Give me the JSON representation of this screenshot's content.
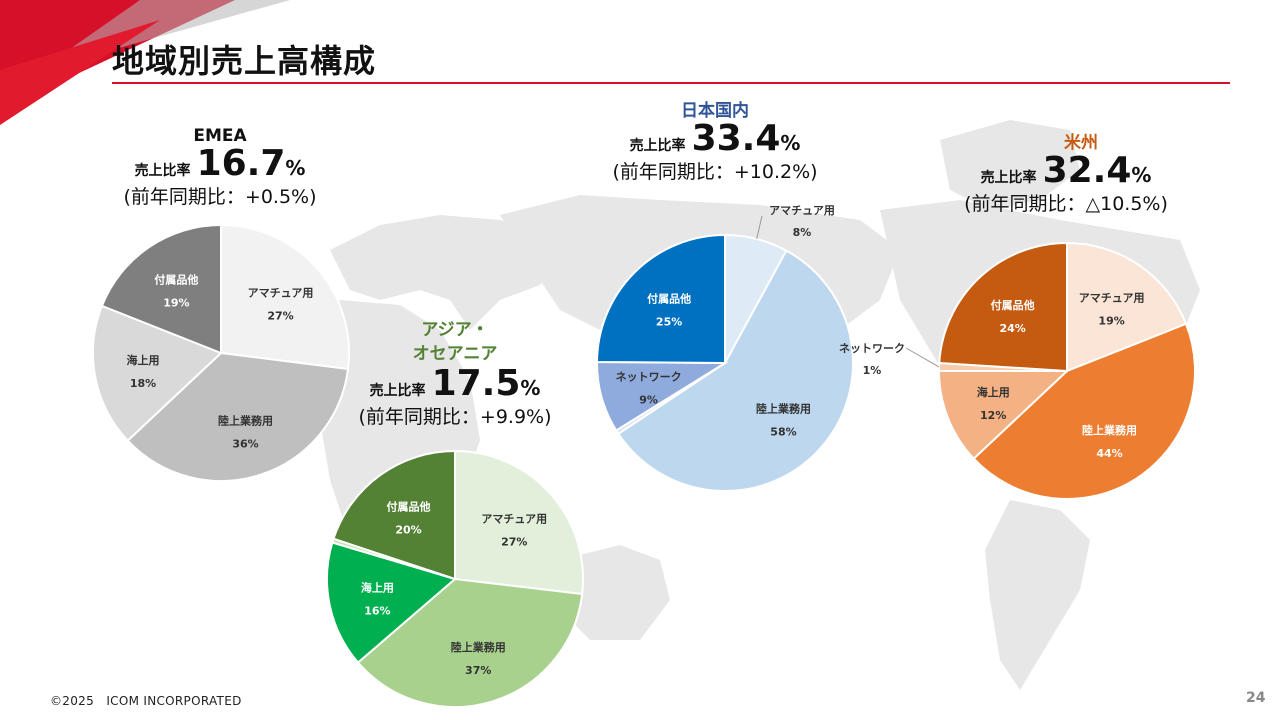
{
  "page": {
    "title": "地域別売上高構成",
    "footer": "©2025　ICOM INCORPORATED",
    "page_number": "24"
  },
  "colors": {
    "accent": "#d7102a",
    "japan_title": "#2f5597",
    "americas_title": "#c55a11",
    "asia_title": "#548235"
  },
  "chart_data": [
    {
      "type": "pie",
      "title": "EMEA",
      "ratio_label": "売上比率",
      "ratio_value": "16.7",
      "ratio_unit": "%",
      "yoy": "(前年同期比：+0.5%)",
      "slices": [
        {
          "label": "アマチュア用",
          "value": 27,
          "color": "#f2f2f2"
        },
        {
          "label": "陸上業務用",
          "value": 36,
          "color": "#bfbfbf"
        },
        {
          "label": "海上用",
          "value": 18,
          "color": "#d9d9d9"
        },
        {
          "label": "付属品他",
          "value": 19,
          "color": "#7f7f7f"
        }
      ]
    },
    {
      "type": "pie",
      "title": "アジア・オセアニア",
      "title_lines": [
        "アジア・",
        "オセアニア"
      ],
      "ratio_label": "売上比率",
      "ratio_value": "17.5",
      "ratio_unit": "%",
      "yoy": "(前年同期比：+9.9%)",
      "slices": [
        {
          "label": "アマチュア用",
          "value": 27,
          "color": "#e2efda"
        },
        {
          "label": "陸上業務用",
          "value": 37,
          "color": "#a9d18e"
        },
        {
          "label": "海上用",
          "value": 16,
          "color": "#00b050"
        },
        {
          "label": "",
          "value": 0.5,
          "color": "#c5e0b4"
        },
        {
          "label": "付属品他",
          "value": 20,
          "color": "#548235"
        }
      ]
    },
    {
      "type": "pie",
      "title": "日本国内",
      "ratio_label": "売上比率",
      "ratio_value": "33.4",
      "ratio_unit": "%",
      "yoy": "(前年同期比：+10.2%)",
      "slices": [
        {
          "label": "アマチュア用",
          "value": 8,
          "color": "#deebf7"
        },
        {
          "label": "陸上業務用",
          "value": 58,
          "color": "#bdd7ee"
        },
        {
          "label": "",
          "value": 0.5,
          "color": "#dae3f3"
        },
        {
          "label": "ネットワーク",
          "value": 9,
          "color": "#8faadc"
        },
        {
          "label": "付属品他",
          "value": 25,
          "color": "#0070c0"
        }
      ]
    },
    {
      "type": "pie",
      "title": "米州",
      "ratio_label": "売上比率",
      "ratio_value": "32.4",
      "ratio_unit": "%",
      "yoy": "(前年同期比：△10.5%)",
      "slices": [
        {
          "label": "アマチュア用",
          "value": 19,
          "color": "#fbe5d6"
        },
        {
          "label": "陸上業務用",
          "value": 44,
          "color": "#ed7d31"
        },
        {
          "label": "海上用",
          "value": 12,
          "color": "#f4b183"
        },
        {
          "label": "ネットワーク",
          "value": 1,
          "color": "#f8cbad"
        },
        {
          "label": "付属品他",
          "value": 24,
          "color": "#c55a11"
        }
      ]
    }
  ]
}
